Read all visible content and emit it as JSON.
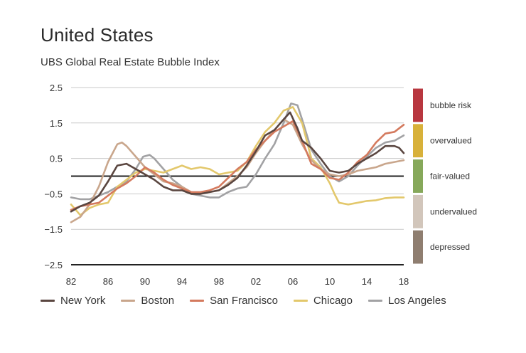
{
  "header": {
    "title": "United States",
    "subtitle": "UBS Global Real Estate Bubble Index"
  },
  "chart_data": {
    "type": "line",
    "title": "United States",
    "subtitle": "UBS Global Real Estate Bubble Index",
    "xlabel": "",
    "ylabel": "",
    "xlim": [
      1982,
      2018
    ],
    "ylim": [
      -2.5,
      2.5
    ],
    "x_ticks": [
      1982,
      1986,
      1990,
      1994,
      1998,
      2002,
      2006,
      2010,
      2014,
      2018
    ],
    "x_tick_labels": [
      "82",
      "86",
      "90",
      "94",
      "98",
      "02",
      "06",
      "10",
      "14",
      "18"
    ],
    "y_ticks": [
      2.5,
      1.5,
      0.5,
      -0.5,
      -1.5,
      -2.5
    ],
    "y_tick_labels": [
      "2.5",
      "1.5",
      "0.5",
      "−0.5",
      "−1.5",
      "−2.5"
    ],
    "risk_bands": [
      {
        "label": "bubble risk",
        "from": 1.5,
        "to": 2.5,
        "color": "#b8373f"
      },
      {
        "label": "overvalued",
        "from": 0.5,
        "to": 1.5,
        "color": "#d8b13a"
      },
      {
        "label": "fair-valued",
        "from": -0.5,
        "to": 0.5,
        "color": "#86a85a"
      },
      {
        "label": "undervalued",
        "from": -1.5,
        "to": -0.5,
        "color": "#d2c6bb"
      },
      {
        "label": "depressed",
        "from": -2.5,
        "to": -1.5,
        "color": "#8f7e70"
      }
    ],
    "series": [
      {
        "name": "New York",
        "color": "#5a4640",
        "x": [
          1982,
          1983,
          1984,
          1985,
          1986,
          1987,
          1988,
          1989,
          1990,
          1991,
          1992,
          1993,
          1994,
          1995,
          1996,
          1997,
          1998,
          1999,
          2000,
          2001,
          2002,
          2003,
          2004,
          2005,
          2005.7,
          2006.5,
          2007,
          2008,
          2009,
          2010,
          2011,
          2012,
          2013,
          2014,
          2015,
          2016,
          2017,
          2017.5,
          2018
        ],
        "y": [
          -1.0,
          -0.85,
          -0.75,
          -0.55,
          -0.15,
          0.3,
          0.35,
          0.2,
          0.05,
          -0.1,
          -0.3,
          -0.4,
          -0.4,
          -0.5,
          -0.5,
          -0.45,
          -0.4,
          -0.25,
          -0.05,
          0.3,
          0.7,
          1.15,
          1.3,
          1.6,
          1.8,
          1.35,
          1.0,
          0.8,
          0.5,
          0.15,
          0.1,
          0.15,
          0.35,
          0.5,
          0.65,
          0.85,
          0.85,
          0.8,
          0.65
        ]
      },
      {
        "name": "Boston",
        "color": "#c9a68c",
        "x": [
          1982,
          1983,
          1984,
          1985,
          1986,
          1987,
          1987.5,
          1988,
          1989,
          1990,
          1991,
          1992,
          1993,
          1994,
          1995,
          1996,
          1997,
          1998,
          1999,
          2000,
          2001,
          2002,
          2003,
          2004,
          2005,
          2006,
          2007,
          2008,
          2009,
          2010,
          2011,
          2012,
          2013,
          2014,
          2015,
          2016,
          2017,
          2018
        ],
        "y": [
          -1.3,
          -1.15,
          -0.8,
          -0.3,
          0.4,
          0.9,
          0.95,
          0.85,
          0.55,
          0.25,
          0.05,
          -0.15,
          -0.2,
          -0.3,
          -0.45,
          -0.5,
          -0.45,
          -0.4,
          -0.2,
          0.0,
          0.25,
          0.65,
          1.0,
          1.3,
          1.6,
          1.45,
          0.9,
          0.45,
          0.2,
          0.05,
          0.0,
          0.05,
          0.15,
          0.2,
          0.25,
          0.35,
          0.4,
          0.45
        ]
      },
      {
        "name": "San Francisco",
        "color": "#d47a5e",
        "x": [
          1982,
          1983,
          1984,
          1985,
          1986,
          1987,
          1988,
          1989,
          1990,
          1991,
          1992,
          1993,
          1994,
          1995,
          1996,
          1997,
          1998,
          1999,
          2000,
          2001,
          2002,
          2003,
          2004,
          2005,
          2006,
          2007,
          2008,
          2009,
          2010,
          2011,
          2012,
          2013,
          2014,
          2015,
          2016,
          2017,
          2018
        ],
        "y": [
          -0.95,
          -0.85,
          -0.8,
          -0.75,
          -0.55,
          -0.35,
          -0.2,
          0.0,
          0.25,
          0.1,
          -0.1,
          -0.25,
          -0.35,
          -0.45,
          -0.45,
          -0.4,
          -0.3,
          -0.05,
          0.2,
          0.4,
          0.75,
          1.0,
          1.25,
          1.4,
          1.55,
          1.0,
          0.35,
          0.2,
          -0.05,
          -0.1,
          0.1,
          0.4,
          0.6,
          0.95,
          1.2,
          1.25,
          1.45
        ]
      },
      {
        "name": "Chicago",
        "color": "#e3c86c",
        "x": [
          1982,
          1983,
          1984,
          1985,
          1986,
          1987,
          1988,
          1989,
          1990,
          1991,
          1992,
          1993,
          1994,
          1995,
          1996,
          1997,
          1998,
          1999,
          2000,
          2001,
          2002,
          2003,
          2004,
          2005,
          2006,
          2007,
          2008,
          2009,
          2010,
          2010.5,
          2011,
          2012,
          2013,
          2014,
          2015,
          2016,
          2017,
          2018
        ],
        "y": [
          -0.8,
          -1.1,
          -0.9,
          -0.8,
          -0.75,
          -0.3,
          -0.1,
          0.1,
          0.2,
          0.15,
          0.1,
          0.2,
          0.3,
          0.2,
          0.25,
          0.2,
          0.05,
          0.1,
          0.15,
          0.4,
          0.85,
          1.25,
          1.5,
          1.85,
          1.95,
          1.5,
          0.5,
          0.25,
          -0.2,
          -0.5,
          -0.75,
          -0.8,
          -0.75,
          -0.7,
          -0.68,
          -0.62,
          -0.6,
          -0.6
        ]
      },
      {
        "name": "Los Angeles",
        "color": "#a2a2a4",
        "x": [
          1982,
          1983,
          1984,
          1985,
          1986,
          1987,
          1988,
          1989,
          1989.8,
          1990.5,
          1991,
          1992,
          1993,
          1994,
          1995,
          1996,
          1997,
          1998,
          1999,
          2000,
          2001,
          2002,
          2003,
          2004,
          2005,
          2005.8,
          2006.5,
          2007,
          2008,
          2009,
          2010,
          2011,
          2012,
          2013,
          2014,
          2015,
          2016,
          2017,
          2018
        ],
        "y": [
          -0.6,
          -0.65,
          -0.65,
          -0.55,
          -0.45,
          -0.3,
          -0.15,
          0.2,
          0.55,
          0.6,
          0.5,
          0.2,
          -0.1,
          -0.3,
          -0.5,
          -0.55,
          -0.6,
          -0.6,
          -0.45,
          -0.35,
          -0.3,
          0.05,
          0.5,
          0.9,
          1.5,
          2.05,
          2.0,
          1.6,
          0.75,
          0.35,
          0.0,
          -0.15,
          0.0,
          0.3,
          0.55,
          0.8,
          0.95,
          1.0,
          1.15
        ]
      }
    ],
    "legend_position": "bottom"
  }
}
